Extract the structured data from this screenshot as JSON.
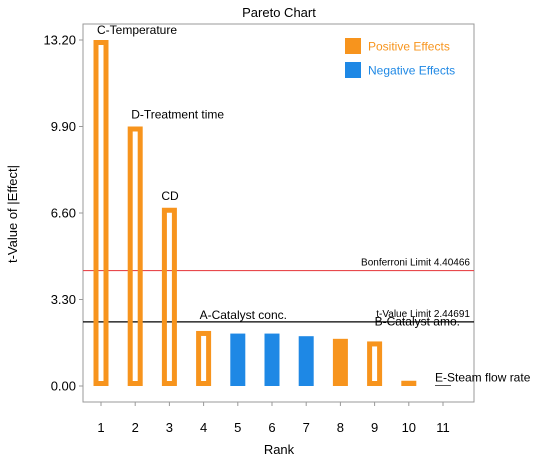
{
  "chart_data": {
    "type": "bar",
    "title": "Pareto Chart",
    "xlabel": "Rank",
    "ylabel": "t-Value of |Effect|",
    "ylim": [
      0,
      13.2
    ],
    "yticks": [
      "0.00",
      "3.30",
      "6.60",
      "9.90",
      "13.20"
    ],
    "categories": [
      "1",
      "2",
      "3",
      "4",
      "5",
      "6",
      "7",
      "8",
      "9",
      "10",
      "11"
    ],
    "values": [
      13.2,
      9.9,
      6.8,
      2.1,
      2.0,
      2.0,
      1.9,
      1.8,
      1.7,
      0.2,
      0.02
    ],
    "effect_sign": [
      "positive",
      "positive",
      "positive",
      "positive",
      "negative",
      "negative",
      "negative",
      "positive",
      "positive",
      "positive",
      "positive"
    ],
    "bar_style": [
      "hollow",
      "hollow",
      "hollow",
      "hollow",
      "filled",
      "filled",
      "filled",
      "filled",
      "hollow",
      "filled",
      "filled"
    ],
    "bar_labels": [
      "C-Temperature",
      "D-Treatment time",
      "CD",
      "A-Catalyst conc.",
      "",
      "",
      "",
      "",
      "B-Catalyst amo.",
      "",
      "E-Steam flow rate"
    ],
    "reference_lines": [
      {
        "label": "Bonferroni Limit 4.40466",
        "value": 4.40466,
        "color": "#e8494d"
      },
      {
        "label": "t-Value Limit 2.44691",
        "value": 2.44691,
        "color": "#000000"
      }
    ],
    "legend": {
      "position": "top-right",
      "items": [
        {
          "label": "Positive Effects",
          "color": "#f7941d"
        },
        {
          "label": "Negative Effects",
          "color": "#1e88e5"
        }
      ]
    },
    "colors": {
      "positive": "#f7941d",
      "negative": "#1e88e5",
      "axis": "#999999"
    }
  }
}
